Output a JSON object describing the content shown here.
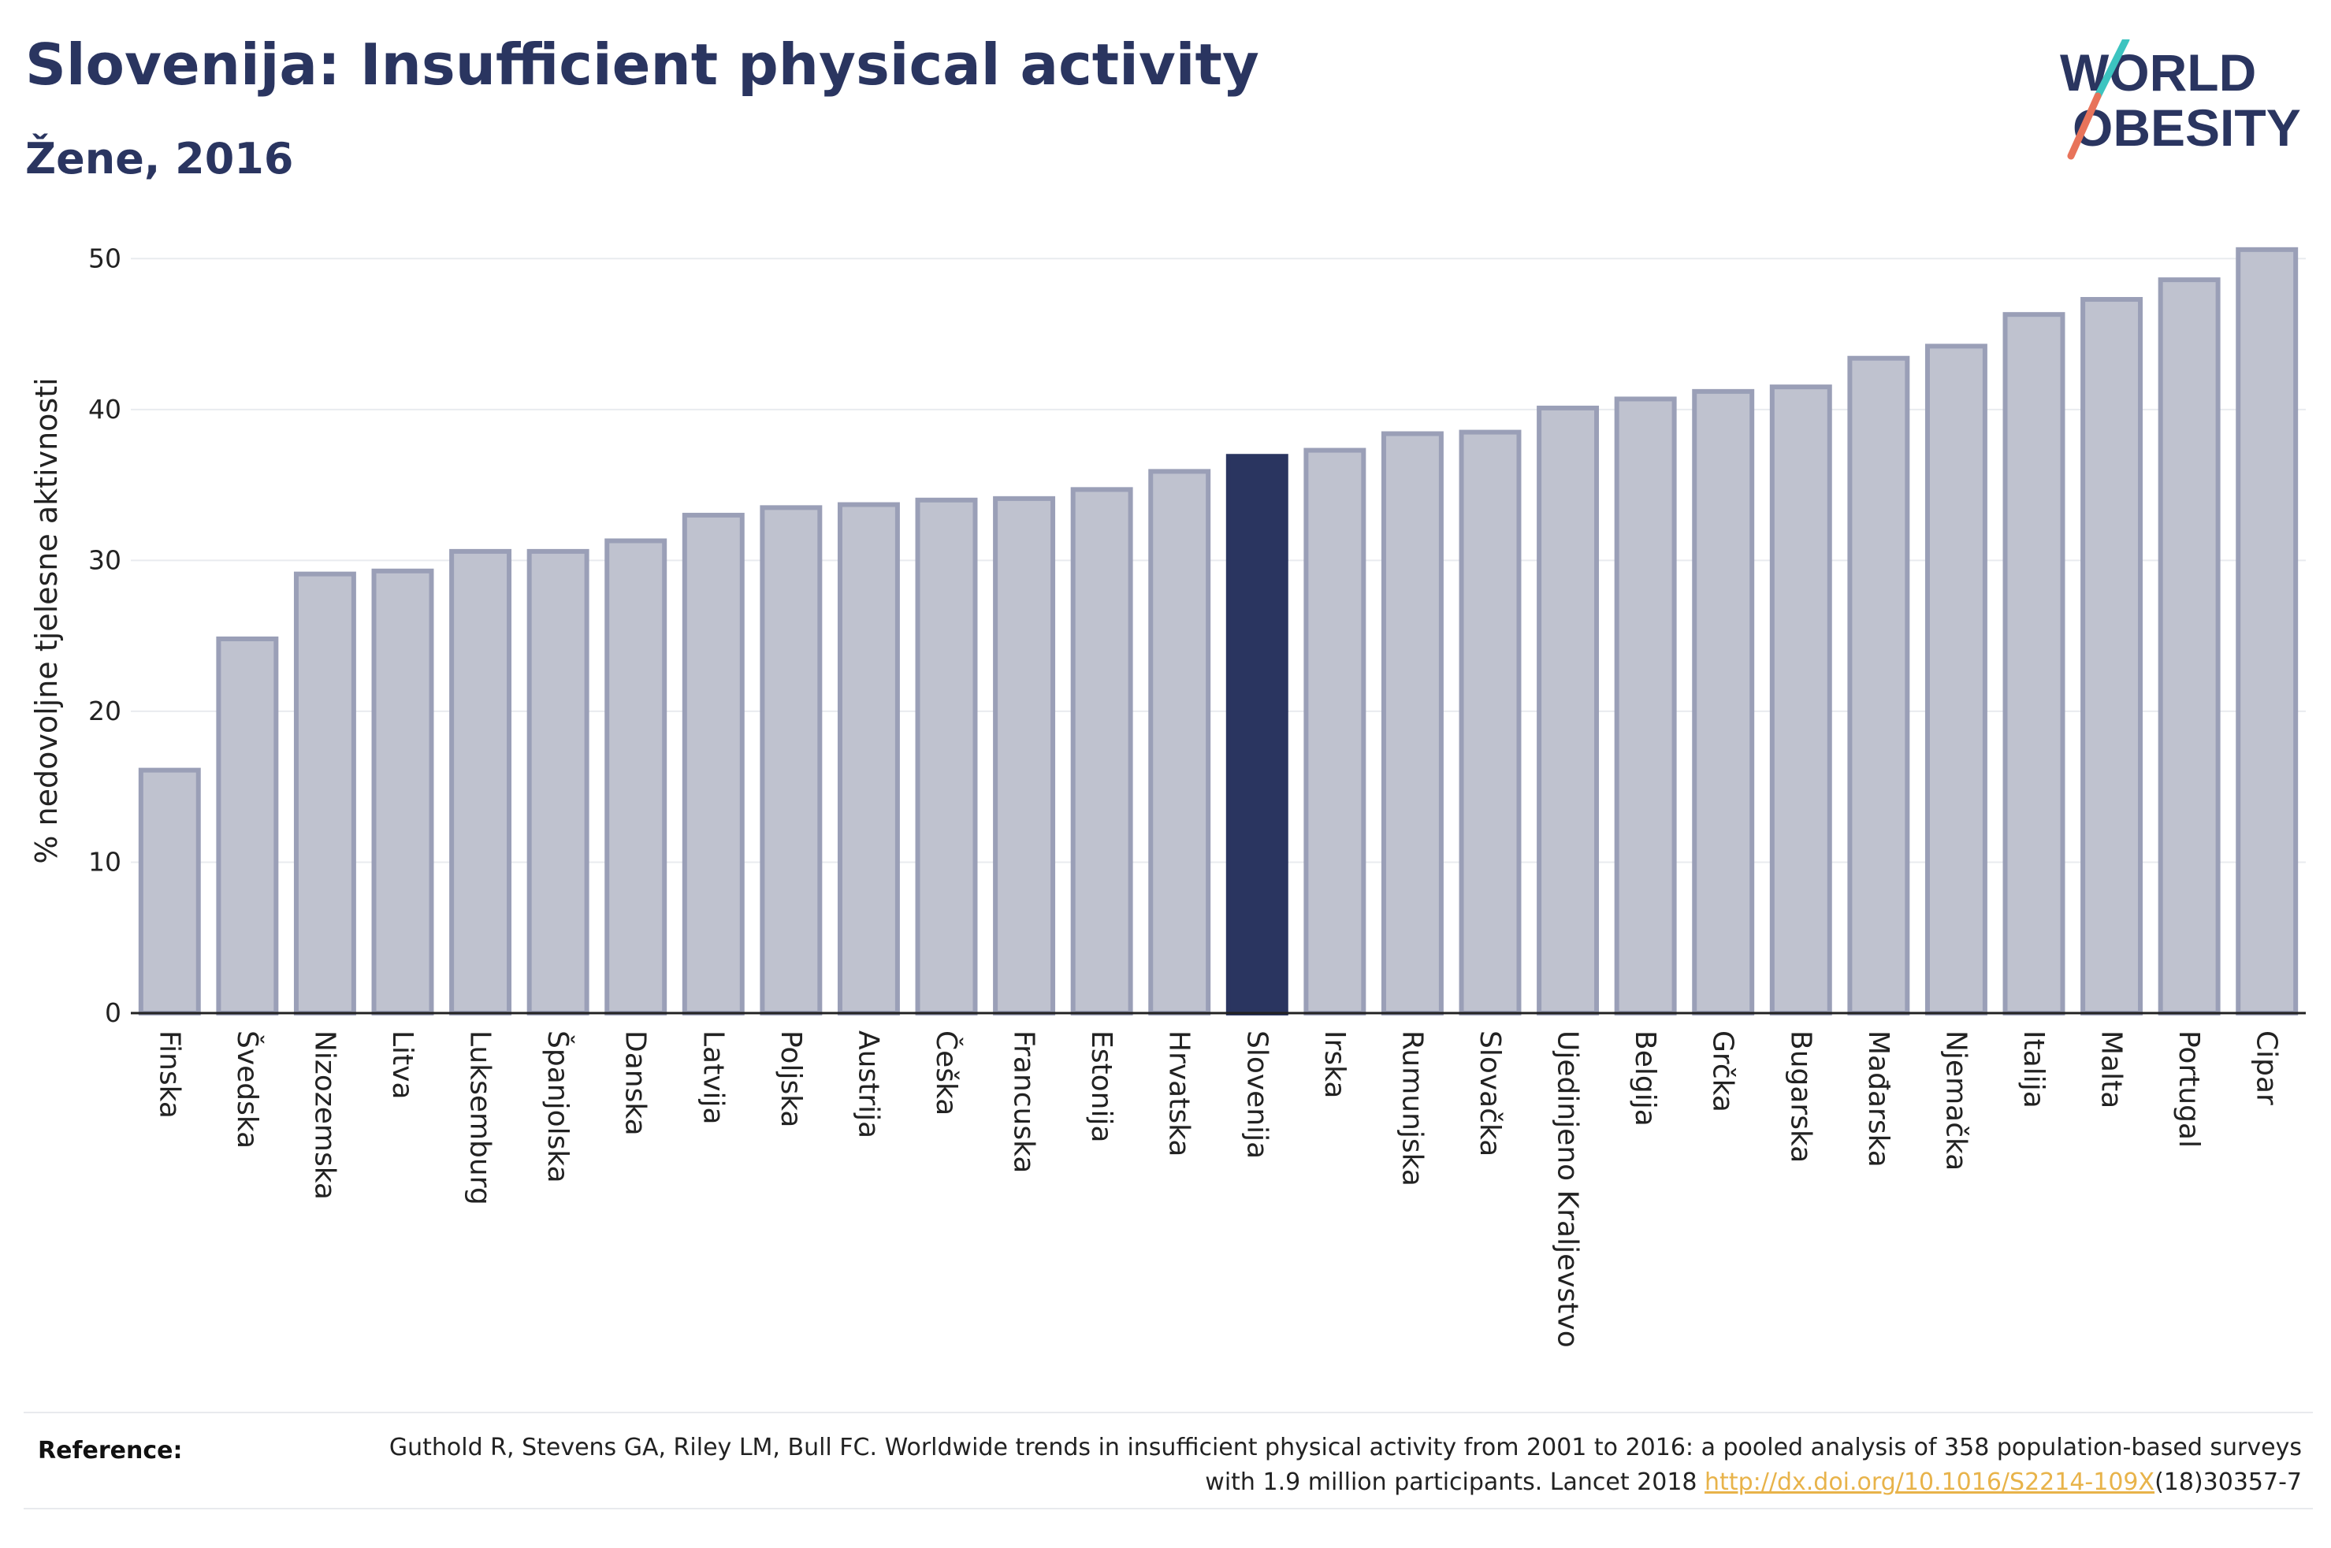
{
  "header": {
    "title": "Slovenija: Insufficient physical activity",
    "subtitle": "Žene, 2016"
  },
  "logo": {
    "line1": "WORLD",
    "line2": "OBESITY",
    "colors": {
      "text": "#2a3560",
      "slash_top": "#3cc4c0",
      "slash_bottom": "#e8735a"
    }
  },
  "chart_data": {
    "type": "bar",
    "title": "",
    "xlabel": "",
    "ylabel": "% nedovoljne tjelesne aktivnosti",
    "ylim": [
      0,
      52
    ],
    "yticks": [
      0,
      10,
      20,
      30,
      40,
      50
    ],
    "grid": true,
    "highlight": "Slovenija",
    "colors": {
      "bar": "#bfc2cf",
      "bar_edge": "#9a9fb7",
      "highlight": "#2a3560",
      "grid": "#e9ebef",
      "axis": "#222222"
    },
    "categories": [
      "Finska",
      "Švedska",
      "Nizozemska",
      "Litva",
      "Luksemburg",
      "Španjolska",
      "Danska",
      "Latvija",
      "Poljska",
      "Austrija",
      "Češka",
      "Francuska",
      "Estonija",
      "Hrvatska",
      "Slovenija",
      "Irska",
      "Rumunjska",
      "Slovačka",
      "Ujedinjeno Kraljevstvo",
      "Belgija",
      "Grčka",
      "Bugarska",
      "Mađarska",
      "Njemačka",
      "Italija",
      "Malta",
      "Portugal",
      "Cipar"
    ],
    "values": [
      16.1,
      24.8,
      29.1,
      29.3,
      30.6,
      30.6,
      31.3,
      33.0,
      33.5,
      33.7,
      34.0,
      34.1,
      34.7,
      35.9,
      36.9,
      37.3,
      38.4,
      38.5,
      40.1,
      40.7,
      41.2,
      41.5,
      43.4,
      44.2,
      46.3,
      47.3,
      48.6,
      50.6
    ]
  },
  "reference": {
    "label": "Reference:",
    "text_before": "Guthold R, Stevens GA, Riley LM, Bull FC. Worldwide trends in insufficient physical activity from 2001 to 2016: a pooled analysis of 358 population-based surveys with 1.9 million participants. Lancet 2018 ",
    "link": "http://dx.doi.org/10.1016/S2214-109X",
    "text_after": "(18)30357-7"
  }
}
